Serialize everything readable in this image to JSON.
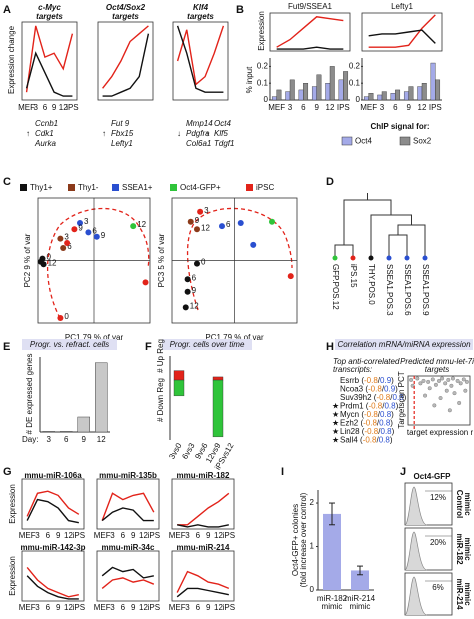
{
  "A": {
    "label": "A",
    "y_label": "Expression change",
    "x_labels": [
      "MEF",
      "3",
      "6",
      "9",
      "12",
      "iPS"
    ],
    "ylim": [
      0,
      1
    ],
    "charts": [
      {
        "title": "c-Myc",
        "subtitle": "targets",
        "series": [
          {
            "color": "#e2231a",
            "values": [
              0.1,
              0.95,
              0.55,
              0.6,
              0.4,
              0.85
            ]
          },
          {
            "color": "#111111",
            "values": [
              0.15,
              0.6,
              0.35,
              0.1,
              0.05,
              0.05
            ]
          }
        ],
        "genes": [
          {
            "arrow": "↑",
            "color": "#e2231a",
            "names": [
              "Ccnb1",
              "Cdk1",
              "Aurka"
            ]
          }
        ]
      },
      {
        "title": "Oct4/Sox2",
        "subtitle": "targets",
        "series": [
          {
            "color": "#e2231a",
            "values": [
              0.15,
              0.3,
              0.5,
              0.75,
              0.85,
              0.95
            ]
          },
          {
            "color": "#111111",
            "values": [
              0.05,
              0.05,
              0.1,
              0.15,
              0.3,
              0.85
            ]
          }
        ],
        "genes": [
          {
            "arrow": "↑",
            "color": "#e2231a",
            "names": [
              "Fut 9",
              "Fbx15",
              "Lefty1"
            ]
          }
        ]
      },
      {
        "title": "Klf4",
        "subtitle": "targets",
        "series": [
          {
            "color": "#e2231a",
            "values": [
              0.5,
              0.9,
              0.2,
              0.3,
              0.6,
              0.95
            ]
          },
          {
            "color": "#111111",
            "values": [
              0.95,
              0.6,
              0.15,
              0.1,
              0.1,
              0.1
            ]
          }
        ],
        "genes": [
          {
            "arrow": "↓",
            "color": "#1f9a3c",
            "names": [
              "Mmp14",
              "Pdgfra",
              "Col6a1"
            ]
          },
          {
            "arrow": "↑",
            "color": "#e2231a",
            "names": [
              "Oct4",
              "Klf5",
              "Tdgf1"
            ]
          }
        ]
      }
    ]
  },
  "B": {
    "label": "B",
    "y_label": "Expression",
    "bar_y_label": "% input",
    "x_labels": [
      "MEF",
      "3",
      "6",
      "9",
      "12",
      "IPS"
    ],
    "ylim": [
      0,
      1
    ],
    "legend_title": "ChIP signal for:",
    "chip_legend": [
      {
        "name": "Oct4",
        "color": "#a4aae8"
      },
      {
        "name": "Sox2",
        "color": "#8c8c8c"
      }
    ],
    "charts": [
      {
        "title": "Fut9/SSEA1",
        "series": [
          {
            "color": "#e2231a",
            "values": [
              0.1,
              0.3,
              0.6,
              0.9,
              0.85,
              0.8
            ]
          },
          {
            "color": "#111111",
            "values": [
              0.05,
              0.05,
              0.05,
              0.1,
              0.05,
              0.05
            ]
          }
        ],
        "chip": [
          [
            0.02,
            0.05,
            0.06,
            0.08,
            0.1,
            0.12
          ],
          [
            0.06,
            0.12,
            0.1,
            0.15,
            0.2,
            0.17
          ]
        ],
        "chip_ylim": [
          0,
          0.25
        ],
        "chip_yticks": [
          0,
          0.1,
          0.2
        ]
      },
      {
        "title": "Lefty1",
        "series": [
          {
            "color": "#e2231a",
            "values": [
              0.1,
              0.1,
              0.1,
              0.15,
              0.6,
              0.95
            ]
          },
          {
            "color": "#111111",
            "values": [
              0.4,
              0.45,
              0.45,
              0.5,
              0.55,
              0.2
            ]
          }
        ],
        "chip": [
          [
            0.02,
            0.03,
            0.04,
            0.05,
            0.08,
            0.22
          ],
          [
            0.04,
            0.05,
            0.06,
            0.08,
            0.1,
            0.12
          ]
        ],
        "chip_ylim": [
          0,
          0.25
        ],
        "chip_yticks": [
          0,
          0.1,
          0.2
        ]
      }
    ]
  },
  "C": {
    "label": "C",
    "xlim": [
      -1,
      1
    ],
    "ylim": [
      -1,
      1
    ],
    "legend": [
      {
        "name": "Thy1+",
        "color": "#111111"
      },
      {
        "name": "Thy1-",
        "color": "#8b3a1a"
      },
      {
        "name": "SSEA1+",
        "color": "#2a4fd0"
      },
      {
        "name": "Oct4-GFP+",
        "color": "#2fc43a"
      },
      {
        "name": "iPSC",
        "color": "#e2231a"
      }
    ],
    "plots": [
      {
        "y_label": "PC2   9 % of var",
        "x_label": "PC1   79 % of var",
        "points": [
          {
            "x": -0.92,
            "y": 0.03,
            "group": 0,
            "label": "0"
          },
          {
            "x": -0.9,
            "y": -0.06,
            "group": 0,
            "label": "12"
          },
          {
            "x": -0.95,
            "y": -0.02,
            "group": 0
          },
          {
            "x": -0.6,
            "y": 0.35,
            "group": 1,
            "label": "3"
          },
          {
            "x": -0.55,
            "y": 0.2,
            "group": 1,
            "label": "6"
          },
          {
            "x": -0.48,
            "y": 0.28,
            "group": 4
          },
          {
            "x": -0.25,
            "y": 0.6,
            "group": 2,
            "label": "3"
          },
          {
            "x": -0.1,
            "y": 0.45,
            "group": 2,
            "label": "6"
          },
          {
            "x": 0.05,
            "y": 0.38,
            "group": 2,
            "label": "9"
          },
          {
            "x": -0.35,
            "y": 0.5,
            "group": 4,
            "label": "9"
          },
          {
            "x": 0.7,
            "y": 0.55,
            "group": 3,
            "label": "12"
          },
          {
            "x": 0.92,
            "y": -0.35,
            "group": 4
          },
          {
            "x": -0.6,
            "y": -0.92,
            "group": 4,
            "label": "0"
          }
        ]
      },
      {
        "y_label": "PC3   5 % of var",
        "x_label": "PC1   79 % of var",
        "points": [
          {
            "x": -0.7,
            "y": 0.62,
            "group": 1,
            "label": "9"
          },
          {
            "x": -0.6,
            "y": 0.5,
            "group": 1,
            "label": "12"
          },
          {
            "x": -0.55,
            "y": 0.78,
            "group": 4,
            "label": "3"
          },
          {
            "x": -0.2,
            "y": 0.55,
            "group": 2,
            "label": "6"
          },
          {
            "x": 0.1,
            "y": 0.6,
            "group": 2
          },
          {
            "x": 0.3,
            "y": 0.25,
            "group": 2
          },
          {
            "x": -0.75,
            "y": -0.3,
            "group": 0,
            "label": "6"
          },
          {
            "x": -0.75,
            "y": -0.5,
            "group": 0,
            "label": "9"
          },
          {
            "x": -0.78,
            "y": -0.75,
            "group": 0,
            "label": "12"
          },
          {
            "x": -0.6,
            "y": -0.05,
            "group": 0,
            "label": "0"
          },
          {
            "x": 0.6,
            "y": 0.62,
            "group": 3
          },
          {
            "x": 0.9,
            "y": -0.25,
            "group": 4
          }
        ]
      }
    ]
  },
  "D": {
    "label": "D",
    "leaves": [
      {
        "label": "GFP.POS.12",
        "color": "#2fc43a"
      },
      {
        "label": "iPS.15",
        "color": "#e2231a"
      },
      {
        "label": "THY.POS.0",
        "color": "#111111"
      },
      {
        "label": "SSEA1.POS.3",
        "color": "#2a4fd0"
      },
      {
        "label": "SSEA1.POS.6",
        "color": "#2a4fd0"
      },
      {
        "label": "SSEA1.POS.9",
        "color": "#2a4fd0"
      }
    ]
  },
  "E": {
    "label": "E",
    "title": "Progr. vs. refract. cells",
    "y_label": "# DE expressed genes",
    "x_prefix": "Day:",
    "categories": [
      "3",
      "6",
      "9",
      "12"
    ],
    "values": [
      0.05,
      0.05,
      1.3,
      6
    ],
    "ylim": [
      0,
      6.5
    ],
    "color": "#c8c8c8"
  },
  "F": {
    "label": "F",
    "title": "Progr. cells over time",
    "up_label": "# Up Reg",
    "down_label": "# Down Reg",
    "up_color": "#e2231a",
    "down_color": "#2fc43a",
    "categories": [
      "3vs0",
      "6vs3",
      "9vs6",
      "12vs9",
      "iPSvs12"
    ],
    "up": [
      0.6,
      0,
      0,
      0.2,
      0
    ],
    "down": [
      -1.0,
      0,
      0,
      -3.6,
      0
    ],
    "ylim": [
      -3.8,
      1.4
    ]
  },
  "H": {
    "label": "H",
    "title": "Correlation mRNA/miRNA expression",
    "list_title": [
      "Top anti-correlated",
      "transcripts:"
    ],
    "genes": [
      {
        "parts": [
          "Esrrb (",
          "-0.8",
          "/",
          "0.9",
          ")"
        ]
      },
      {
        "parts": [
          "Ncoa3 (",
          "-0.8",
          "/",
          "0.9",
          ")"
        ]
      },
      {
        "parts": [
          "Suv39h2 (",
          "-0.8",
          "/",
          "0.8",
          ")"
        ]
      },
      {
        "star": "★",
        "parts": [
          "Prdm1 (",
          "-0.8",
          "/",
          "0.8",
          ")"
        ]
      },
      {
        "star": "★",
        "parts": [
          "Mycn (",
          "-0.8",
          "/",
          "0.8",
          ")"
        ]
      },
      {
        "star": "★",
        "parts": [
          "Ezh2 (",
          "-0.8",
          "/",
          "0.8",
          ")"
        ]
      },
      {
        "star": "★",
        "parts": [
          "Lin28 (",
          "-0.8",
          "/",
          "0.8",
          ")"
        ]
      },
      {
        "star": "★",
        "parts": [
          "Sall4 (",
          "-0.8",
          "/",
          "0.8",
          ")"
        ]
      }
    ],
    "scatter_title": [
      "Predicted mmu-let-7i",
      "targets"
    ],
    "y_label": "Targetscan PCT",
    "x_label": "target expression r",
    "xlim": [
      -1,
      1
    ],
    "ylim": [
      0,
      1
    ],
    "threshold": -0.8,
    "points": [
      {
        "x": -0.9,
        "y": 0.92
      },
      {
        "x": -0.85,
        "y": 0.8
      },
      {
        "x": -0.7,
        "y": 0.95
      },
      {
        "x": -0.6,
        "y": 0.85
      },
      {
        "x": -0.5,
        "y": 0.9
      },
      {
        "x": -0.45,
        "y": 0.6
      },
      {
        "x": -0.35,
        "y": 0.88
      },
      {
        "x": -0.3,
        "y": 0.75
      },
      {
        "x": -0.2,
        "y": 0.93
      },
      {
        "x": -0.1,
        "y": 0.82
      },
      {
        "x": 0,
        "y": 0.9
      },
      {
        "x": 0.05,
        "y": 0.55
      },
      {
        "x": 0.1,
        "y": 0.95
      },
      {
        "x": 0.2,
        "y": 0.85
      },
      {
        "x": 0.25,
        "y": 0.7
      },
      {
        "x": 0.3,
        "y": 0.92
      },
      {
        "x": 0.4,
        "y": 0.8
      },
      {
        "x": 0.45,
        "y": 0.95
      },
      {
        "x": 0.5,
        "y": 0.65
      },
      {
        "x": 0.6,
        "y": 0.9
      },
      {
        "x": 0.65,
        "y": 0.45
      },
      {
        "x": 0.7,
        "y": 0.85
      },
      {
        "x": 0.8,
        "y": 0.93
      },
      {
        "x": 0.85,
        "y": 0.7
      },
      {
        "x": 0.9,
        "y": 0.88
      },
      {
        "x": -0.15,
        "y": 0.4
      },
      {
        "x": 0.35,
        "y": 0.3
      }
    ]
  },
  "G": {
    "label": "G",
    "y_label": "Expression",
    "x_labels": [
      "MEF",
      "3",
      "6",
      "9",
      "12",
      "iPS"
    ],
    "ylim": [
      0,
      1
    ],
    "charts": [
      {
        "title": "mmu-miR-106a",
        "series": [
          {
            "color": "#e2231a",
            "values": [
              0.3,
              0.85,
              0.9,
              0.8,
              0.5,
              0.35
            ]
          },
          {
            "color": "#111111",
            "values": [
              0.2,
              0.7,
              0.65,
              0.5,
              0.2,
              0.15
            ]
          }
        ]
      },
      {
        "title": "mmu-miR-135b",
        "series": [
          {
            "color": "#e2231a",
            "values": [
              0.2,
              0.85,
              0.7,
              0.8,
              0.85,
              0.4
            ]
          },
          {
            "color": "#111111",
            "values": [
              0.2,
              0.4,
              0.5,
              0.45,
              0.2,
              0.2
            ]
          }
        ]
      },
      {
        "title": "mmu-miR-182",
        "series": [
          {
            "color": "#e2231a",
            "values": [
              0.1,
              0.1,
              0.3,
              0.5,
              0.65,
              0.85
            ]
          },
          {
            "color": "#111111",
            "values": [
              0.1,
              0.05,
              0.1,
              0.05,
              0.05,
              0.1
            ]
          }
        ]
      },
      {
        "title": "mmu-miR-142-3p",
        "series": [
          {
            "color": "#e2231a",
            "values": [
              0.8,
              0.5,
              0.3,
              0.2,
              0.1,
              0.15
            ]
          },
          {
            "color": "#111111",
            "values": [
              0.6,
              0.35,
              0.2,
              0.1,
              0.05,
              0.05
            ]
          }
        ]
      },
      {
        "title": "mmu-miR-34c",
        "series": [
          {
            "color": "#e2231a",
            "values": [
              0.3,
              0.5,
              0.55,
              0.45,
              0.5,
              0.4
            ]
          },
          {
            "color": "#111111",
            "values": [
              0.6,
              0.8,
              0.7,
              0.75,
              0.55,
              0.6
            ]
          }
        ]
      },
      {
        "title": "mmu-miR-214",
        "series": [
          {
            "color": "#e2231a",
            "values": [
              0.2,
              0.7,
              0.6,
              0.45,
              0.4,
              0.3
            ]
          },
          {
            "color": "#111111",
            "values": [
              0.1,
              0.3,
              0.3,
              0.25,
              0.2,
              0.15
            ]
          }
        ]
      }
    ]
  },
  "I": {
    "label": "I",
    "y_label": [
      "Oct4-GFP+ colonies",
      "(fold increase over control)"
    ],
    "categories": [
      [
        "miR-182",
        "mimic"
      ],
      [
        "miR-214",
        "mimic"
      ]
    ],
    "values": [
      1.75,
      0.45
    ],
    "errors": [
      0.25,
      0.1
    ],
    "ylim": [
      0,
      2.3
    ],
    "yticks": [
      0,
      1,
      2
    ],
    "color": "#a4aae8"
  },
  "J": {
    "label": "J",
    "title": "Oct4-GFP",
    "rows": [
      {
        "percent": "12%",
        "label": [
          "Control",
          "mimic"
        ]
      },
      {
        "percent": "20%",
        "label": [
          "miR-182",
          "mimic"
        ]
      },
      {
        "percent": "6%",
        "label": [
          "miR-214",
          "mimic"
        ]
      }
    ]
  }
}
